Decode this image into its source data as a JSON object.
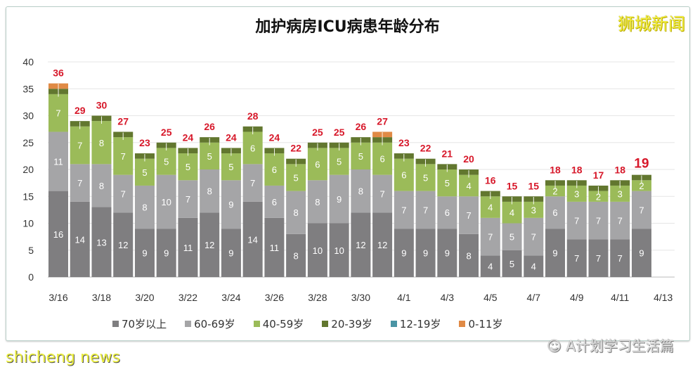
{
  "header": {
    "brand_logo": "狮城新闻"
  },
  "footer": {
    "wechat_account": "A计划学习生活篇",
    "watermark": "shicheng news"
  },
  "chart_data": {
    "type": "bar",
    "stacked": true,
    "title": "加护病房ICU病患年龄分布",
    "xlabel": "",
    "ylabel": "",
    "ylim": [
      0,
      40
    ],
    "yticks": [
      "0",
      "5",
      "10",
      "15",
      "20",
      "25",
      "30",
      "35",
      "40"
    ],
    "grid": true,
    "legend_position": "bottom",
    "categories": [
      "3/16",
      "3/17",
      "3/18",
      "3/19",
      "3/20",
      "3/21",
      "3/22",
      "3/23",
      "3/24",
      "3/25",
      "3/26",
      "3/27",
      "3/28",
      "3/29",
      "3/30",
      "3/31",
      "4/1",
      "4/2",
      "4/3",
      "4/4",
      "4/5",
      "4/6",
      "4/7",
      "4/8",
      "4/9",
      "4/10",
      "4/11",
      "4/12"
    ],
    "xtick_labels": [
      "3/16",
      "3/18",
      "3/20",
      "3/22",
      "3/24",
      "3/26",
      "3/28",
      "3/30",
      "4/1",
      "4/3",
      "4/5",
      "4/7",
      "4/9",
      "4/11",
      "4/13"
    ],
    "series": [
      {
        "name": "70岁以上",
        "color": "#7f7e80",
        "values": [
          16,
          14,
          13,
          12,
          9,
          9,
          11,
          12,
          9,
          14,
          11,
          8,
          10,
          10,
          12,
          12,
          9,
          9,
          9,
          8,
          4,
          5,
          4,
          9,
          7,
          7,
          7,
          9
        ]
      },
      {
        "name": "60-69岁",
        "color": "#a5a5a7",
        "values": [
          11,
          7,
          8,
          7,
          8,
          10,
          7,
          8,
          9,
          7,
          6,
          8,
          8,
          9,
          8,
          7,
          7,
          7,
          6,
          7,
          7,
          5,
          7,
          6,
          7,
          7,
          7,
          7
        ]
      },
      {
        "name": "40-59岁",
        "color": "#9bbb59",
        "values": [
          7,
          7,
          8,
          7,
          5,
          5,
          5,
          5,
          5,
          6,
          6,
          5,
          6,
          5,
          5,
          6,
          6,
          5,
          5,
          4,
          4,
          4,
          3,
          2,
          3,
          2,
          3,
          2
        ]
      },
      {
        "name": "20-39岁",
        "color": "#62772f",
        "values": [
          1,
          1,
          1,
          1,
          1,
          1,
          1,
          1,
          1,
          1,
          1,
          1,
          1,
          1,
          1,
          1,
          1,
          1,
          1,
          1,
          1,
          1,
          1,
          1,
          1,
          1,
          1,
          1
        ]
      },
      {
        "name": "12-19岁",
        "color": "#4a94a4",
        "values": [
          0,
          0,
          0,
          0,
          0,
          0,
          0,
          0,
          0,
          0,
          0,
          0,
          0,
          0,
          0,
          0,
          0,
          0,
          0,
          0,
          0,
          0,
          0,
          0,
          0,
          0,
          0,
          0
        ]
      },
      {
        "name": "0-11岁",
        "color": "#e08a45",
        "values": [
          1,
          0,
          0,
          0,
          0,
          0,
          0,
          0,
          0,
          0,
          0,
          0,
          0,
          0,
          0,
          1,
          0,
          0,
          0,
          0,
          0,
          0,
          0,
          0,
          0,
          0,
          0,
          0
        ]
      }
    ],
    "totals": [
      36,
      29,
      30,
      27,
      23,
      25,
      24,
      26,
      24,
      28,
      24,
      22,
      25,
      25,
      26,
      27,
      23,
      22,
      21,
      20,
      16,
      15,
      15,
      18,
      18,
      17,
      18,
      19
    ],
    "total_label_color": "#d7182a"
  }
}
